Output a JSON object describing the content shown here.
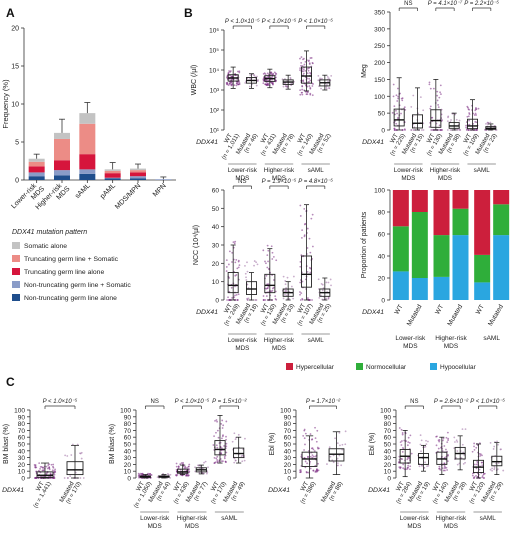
{
  "panels": {
    "a": "A",
    "b": "B",
    "c": "C"
  },
  "chart_data": [
    {
      "id": "A",
      "type": "bar",
      "stacked": true,
      "categories": [
        "Lower-risk MDS",
        "Higher-risk MDS",
        "sAML",
        "pAML",
        "MDS/MPN",
        "MPN"
      ],
      "ylabel": "Frequency (%)",
      "ylim": [
        0,
        20
      ],
      "yticks": [
        0,
        5,
        10,
        15,
        20
      ],
      "series": [
        {
          "name": "Non-truncating germ line alone",
          "color": "#1f4e8c",
          "values": [
            0.5,
            0.6,
            0.8,
            0.2,
            0.2,
            0.0
          ]
        },
        {
          "name": "Non-truncating germ line + Somatic",
          "color": "#8a9cc8",
          "values": [
            0.5,
            0.7,
            0.6,
            0.1,
            0.3,
            0.1
          ]
        },
        {
          "name": "Truncating germ line alone",
          "color": "#d6153c",
          "values": [
            0.8,
            1.3,
            2.0,
            0.6,
            0.5,
            0.0
          ]
        },
        {
          "name": "Truncating germ line + Somatic",
          "color": "#ec8c86",
          "values": [
            0.6,
            2.8,
            4.0,
            0.3,
            0.3,
            0.0
          ]
        },
        {
          "name": "Somatic alone",
          "color": "#c3c3c3",
          "values": [
            0.4,
            0.8,
            1.4,
            0.2,
            0.2,
            0.0
          ]
        }
      ],
      "errors_upper": [
        3.4,
        8.0,
        10.2,
        2.3,
        2.1,
        0.4
      ],
      "legend_title": "DDX41 mutation pattern"
    },
    {
      "id": "B-WBC",
      "type": "box",
      "ylabel": "WBC (/µl)",
      "scale": "log",
      "ylim": [
        10,
        1000000
      ],
      "yticks": [
        "10¹",
        "10²",
        "10³",
        "10⁴",
        "10⁵",
        "10⁶"
      ],
      "groups": [
        "Lower-risk MDS",
        "Higher-risk MDS",
        "sAML"
      ],
      "xlabels": [
        [
          "WT",
          "(n = 1,011)"
        ],
        [
          "Mutated",
          "(n = 46)"
        ],
        [
          "WT",
          "(n = 431)"
        ],
        [
          "Mutated",
          "(n = 78)"
        ],
        [
          "WT",
          "(n = 140)"
        ],
        [
          "Mutated",
          "(n = 52)"
        ]
      ],
      "pvalues": [
        "P < 1.0×10⁻⁵",
        "P < 1.0×10⁻⁵",
        "P < 1.0×10⁻⁵"
      ],
      "boxes": [
        [
          1200,
          2800,
          4000,
          5800,
          14000
        ],
        [
          1200,
          2200,
          3000,
          4200,
          6500
        ],
        [
          1300,
          2700,
          3700,
          5200,
          11000
        ],
        [
          1100,
          1900,
          2500,
          3200,
          5500
        ],
        [
          900,
          2200,
          5000,
          14000,
          90000
        ],
        [
          1000,
          1600,
          2300,
          3200,
          5500
        ]
      ]
    },
    {
      "id": "B-Meg",
      "type": "box",
      "ylabel": "Meg",
      "ylim": [
        0,
        350
      ],
      "yticks": [
        "0",
        "50",
        "100",
        "150",
        "200",
        "250",
        "300",
        "350"
      ],
      "groups": [
        "Lower-risk MDS",
        "Higher-risk MDS",
        "sAML"
      ],
      "xlabels": [
        [
          "WT",
          "(n = 225)"
        ],
        [
          "Mutated",
          "(n = 15)"
        ],
        [
          "WT",
          "(n = 130)"
        ],
        [
          "Mutated",
          "(n = 38)"
        ],
        [
          "WT",
          "(n = 109)"
        ],
        [
          "Mutated",
          "(n = 23)"
        ]
      ],
      "pvalues": [
        "NS",
        "P = 4.1×10⁻⁷",
        "P = 2.2×10⁻⁵"
      ],
      "boxes": [
        [
          0,
          12,
          30,
          62,
          155
        ],
        [
          0,
          6,
          20,
          45,
          125
        ],
        [
          0,
          8,
          28,
          60,
          150
        ],
        [
          0,
          5,
          12,
          22,
          50
        ],
        [
          0,
          4,
          12,
          32,
          90
        ],
        [
          0,
          2,
          5,
          10,
          18
        ]
      ]
    },
    {
      "id": "B-NCC",
      "type": "box",
      "ylabel": "NCC (10⁴/µl)",
      "ylim": [
        0,
        60
      ],
      "yticks": [
        "0",
        "10",
        "20",
        "30",
        "40",
        "50",
        "60"
      ],
      "groups": [
        "Lower-risk MDS",
        "Higher-risk MDS",
        "sAML"
      ],
      "xlabels": [
        [
          "WT",
          "(n = 249)"
        ],
        [
          "Mutated",
          "(n = 18)"
        ],
        [
          "WT",
          "(n = 130)"
        ],
        [
          "Mutated",
          "(n = 33)"
        ],
        [
          "WT",
          "(n = 107)"
        ],
        [
          "Mutated",
          "(n = 25)"
        ]
      ],
      "pvalues": [
        "NS",
        "P = 1.9×10⁻⁵",
        "P = 4.8×10⁻⁵"
      ],
      "boxes": [
        [
          0,
          4,
          8,
          15,
          30
        ],
        [
          0,
          3,
          6,
          10,
          15
        ],
        [
          0,
          4,
          8,
          14,
          28
        ],
        [
          0,
          2,
          4,
          6,
          10
        ],
        [
          0,
          7,
          14,
          24,
          52
        ],
        [
          0,
          2,
          4,
          6,
          12
        ]
      ]
    },
    {
      "id": "B-Cellularity",
      "type": "bar",
      "stacked": true,
      "ylabel": "Proportion of patients",
      "ylim": [
        0,
        100
      ],
      "yticks": [
        0,
        20,
        40,
        60,
        80,
        100
      ],
      "groups": [
        "Lower-risk MDS",
        "Higher-risk MDS",
        "sAML"
      ],
      "categories": [
        "WT",
        "Mutated",
        "WT",
        "Mutated",
        "WT",
        "Mutated"
      ],
      "series": [
        {
          "name": "Hypocellular",
          "color": "#2aa6e0",
          "values": [
            26,
            20,
            21,
            59,
            16,
            59
          ]
        },
        {
          "name": "Normocellular",
          "color": "#2fae3a",
          "values": [
            41,
            60,
            38,
            24,
            25,
            28
          ]
        },
        {
          "name": "Hypercellular",
          "color": "#cc1f3c",
          "values": [
            33,
            20,
            41,
            17,
            59,
            13
          ]
        }
      ]
    },
    {
      "id": "C-BMblast-all",
      "type": "box",
      "ylabel": "BM blast (%)",
      "ylim": [
        0,
        100
      ],
      "yticks": [
        "0",
        "10",
        "20",
        "30",
        "40",
        "50",
        "60",
        "70",
        "80",
        "90",
        "100"
      ],
      "xlabels": [
        [
          "WT",
          "(n = 1,441)"
        ],
        [
          "Mutated",
          "(n = 170)"
        ]
      ],
      "pvalues": [
        "P < 1.0×10⁻⁵"
      ],
      "boxes": [
        [
          0,
          1,
          4,
          9,
          22
        ],
        [
          0,
          5,
          12,
          24,
          48
        ]
      ]
    },
    {
      "id": "C-BMblast-groups",
      "type": "box",
      "ylabel": "BM blast (%)",
      "ylim": [
        0,
        100
      ],
      "yticks": [
        "0",
        "10",
        "20",
        "30",
        "40",
        "50",
        "60",
        "70",
        "80",
        "90",
        "100"
      ],
      "groups": [
        "Lower-risk MDS",
        "Higher-risk MDS",
        "sAML"
      ],
      "xlabels": [
        [
          "WT",
          "(n = 1,050)"
        ],
        [
          "Mutated",
          "(n = 44)"
        ],
        [
          "WT",
          "(n = 436)"
        ],
        [
          "Mutated",
          "(n = 77)"
        ],
        [
          "WT",
          "(n = 170)"
        ],
        [
          "Mutated",
          "(n = 49)"
        ]
      ],
      "pvalues": [
        "NS",
        "P < 1.0×10⁻⁵",
        "P = 1.5×10⁻²"
      ],
      "boxes": [
        [
          0,
          1,
          2,
          3,
          5
        ],
        [
          0,
          1,
          2,
          3,
          5
        ],
        [
          5,
          7,
          9,
          13,
          19
        ],
        [
          6,
          9,
          12,
          15,
          19
        ],
        [
          22,
          34,
          42,
          55,
          92
        ],
        [
          22,
          30,
          36,
          44,
          60
        ]
      ]
    },
    {
      "id": "C-Ebl-all",
      "type": "box",
      "ylabel": "Ebl (%)",
      "ylim": [
        0,
        100
      ],
      "yticks": [
        "0",
        "10",
        "20",
        "30",
        "40",
        "50",
        "60",
        "70",
        "80",
        "90",
        "100"
      ],
      "xlabels": [
        [
          "WT",
          "(n = 586)"
        ],
        [
          "Mutated",
          "(n = 88)"
        ]
      ],
      "pvalues": [
        "P = 1.7×10⁻²"
      ],
      "boxes": [
        [
          0,
          17,
          28,
          38,
          62
        ],
        [
          5,
          25,
          35,
          43,
          68
        ]
      ]
    },
    {
      "id": "C-Ebl-groups",
      "type": "box",
      "ylabel": "Ebl (%)",
      "ylim": [
        0,
        100
      ],
      "yticks": [
        "0",
        "10",
        "20",
        "30",
        "40",
        "50",
        "60",
        "70",
        "80",
        "90",
        "100"
      ],
      "groups": [
        "Lower-risk MDS",
        "Higher-risk MDS",
        "sAML"
      ],
      "xlabels": [
        [
          "WT",
          "(n = 284)"
        ],
        [
          "Mutated",
          "(n = 19)"
        ],
        [
          "WT",
          "(n = 140)"
        ],
        [
          "Mutated",
          "(n = 28)"
        ],
        [
          "WT",
          "(n = 120)"
        ],
        [
          "Mutated",
          "(n = 29)"
        ]
      ],
      "pvalues": [
        "NS",
        "P = 2.6×10⁻²",
        "P < 1.0×10⁻⁵"
      ],
      "boxes": [
        [
          2,
          22,
          32,
          42,
          70
        ],
        [
          10,
          20,
          30,
          36,
          48
        ],
        [
          5,
          20,
          28,
          38,
          60
        ],
        [
          12,
          28,
          36,
          45,
          62
        ],
        [
          0,
          8,
          16,
          26,
          50
        ],
        [
          5,
          18,
          24,
          32,
          52
        ]
      ]
    }
  ],
  "gene_label": "DDX41"
}
